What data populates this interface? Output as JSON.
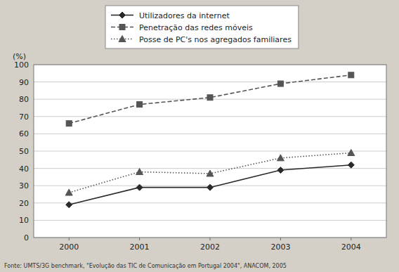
{
  "chart_data": {
    "type": "line",
    "y_label": "(%)",
    "source": "Fonte: UMTS/3G benchmark, \"Evolução das TIC de Comunicação em Portugal 2004\", ANACOM, 2005",
    "x": [
      2000,
      2001,
      2002,
      2003,
      2004
    ],
    "xlim": [
      1999.5,
      2004.5
    ],
    "xticks": [
      2000,
      2001,
      2002,
      2003,
      2004
    ],
    "ylim": [
      0,
      100
    ],
    "yticks": [
      0,
      10,
      20,
      30,
      40,
      50,
      60,
      70,
      80,
      90,
      100
    ],
    "grid": true,
    "legend": "top",
    "series": [
      {
        "name": "Utilizadores da internet",
        "color": "#2a2a2a",
        "marker": "diamond",
        "line_style": "solid",
        "values": [
          19,
          29,
          29,
          39,
          42
        ]
      },
      {
        "name": "Penetração das redes móveis",
        "color": "#555555",
        "marker": "square",
        "line_style": "dashed",
        "values": [
          66,
          77,
          81,
          89,
          94
        ]
      },
      {
        "name": "Posse de PC's nos agregados familiares",
        "color": "#555555",
        "marker": "triangle",
        "line_style": "dotted",
        "values": [
          26,
          38,
          37,
          46,
          49
        ]
      }
    ]
  }
}
